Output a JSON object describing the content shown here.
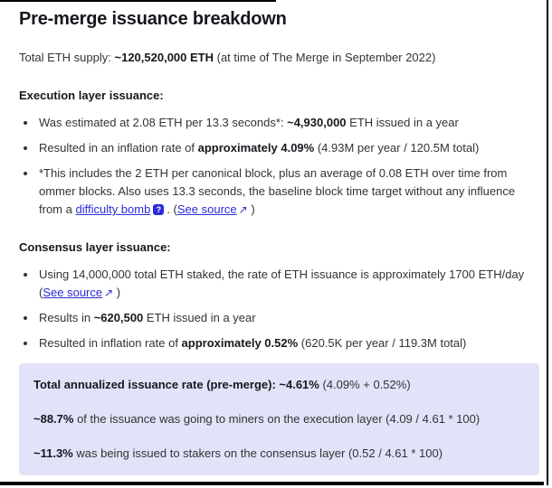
{
  "page": {
    "title": "Pre-merge issuance breakdown"
  },
  "colors": {
    "link_accent": "#2b2bd9",
    "info_box_bg": "#e2e2f9",
    "body_text": "#333333",
    "heading_text": "#16181d"
  },
  "icons": {
    "tooltip_glyph": "?",
    "external_link_glyph": "↗"
  },
  "intro": {
    "pre": "Total ETH supply: ",
    "bold": "~120,520,000 ETH",
    "post": " (at time of The Merge in September 2022)"
  },
  "execution": {
    "heading": "Execution layer issuance:",
    "bullet1": {
      "pre": "Was estimated at 2.08 ETH per 13.3 seconds*: ",
      "bold": "~4,930,000",
      "post": " ETH issued in a year"
    },
    "bullet2": {
      "pre": "Resulted in an inflation rate of ",
      "bold": "approximately 4.09%",
      "post": " (4.93M per year / 120.5M total)"
    },
    "bullet3": {
      "pre": "*This includes the 2 ETH per canonical block, plus an average of 0.08 ETH over time from ommer blocks. Also uses 13.3 seconds, the baseline block time target without any influence from a ",
      "link1": "difficulty bomb",
      "tooltip_icon": "?",
      "mid": ". (",
      "link2": "See source",
      "arrow": "↗",
      "post": " )"
    }
  },
  "consensus": {
    "heading": "Consensus layer issuance:",
    "bullet1": {
      "pre": "Using 14,000,000 total ETH staked, the rate of ETH issuance is approximately 1700 ETH/day (",
      "link": "See source",
      "arrow": "↗",
      "post": " )"
    },
    "bullet2": {
      "pre": "Results in ",
      "bold": "~620,500",
      "post": " ETH issued in a year"
    },
    "bullet3": {
      "pre": "Resulted in inflation rate of ",
      "bold": "approximately 0.52%",
      "post": " (620.5K per year / 119.3M total)"
    }
  },
  "summary_box": {
    "line1": {
      "bold": "Total annualized issuance rate (pre-merge): ~4.61%",
      "post": " (4.09% + 0.52%)"
    },
    "line2": {
      "bold": "~88.7%",
      "post": " of the issuance was going to miners on the execution layer (4.09 / 4.61 * 100)"
    },
    "line3": {
      "bold": "~11.3%",
      "post": " was being issued to stakers on the consensus layer (0.52 / 4.61 * 100)"
    }
  }
}
